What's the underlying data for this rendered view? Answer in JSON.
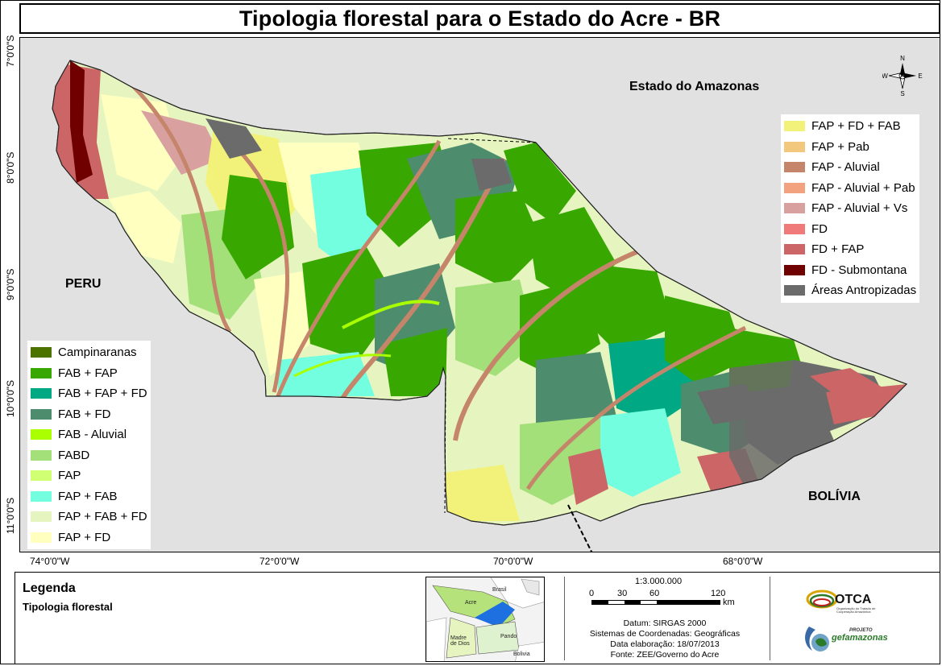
{
  "title": "Tipologia florestal para o Estado do Acre - BR",
  "map": {
    "latitude_labels": [
      "7°0'0\"S",
      "8°0'0\"S",
      "9°0'0\"S",
      "10°0'0\"S",
      "11°0'0\"S"
    ],
    "longitude_labels": [
      "74°0'0\"W",
      "72°0'0\"W",
      "70°0'0\"W",
      "68°0'0\"W"
    ],
    "places": {
      "amazonas": "Estado do Amazonas",
      "peru": "PERU",
      "bolivia": "BOLÍVIA"
    },
    "compass": {
      "n": "N",
      "s": "S",
      "e": "E",
      "w": "W"
    }
  },
  "legend_right": [
    {
      "label": "FAP + FD + FAB",
      "color": "#f2f27a"
    },
    {
      "label": "FAP + Pab",
      "color": "#f2c77e"
    },
    {
      "label": "FAP - Aluvial",
      "color": "#c4856a"
    },
    {
      "label": "FAP - Aluvial + Pab",
      "color": "#f2a27e"
    },
    {
      "label": "FAP - Aluvial + Vs",
      "color": "#d9a0a0"
    },
    {
      "label": "FD",
      "color": "#f07a7a"
    },
    {
      "label": "FD + FAP",
      "color": "#cc6666"
    },
    {
      "label": "FD - Submontana",
      "color": "#700000"
    },
    {
      "label": "Áreas Antropizadas",
      "color": "#6b6b6b"
    }
  ],
  "legend_left": [
    {
      "label": "Campinaranas",
      "color": "#4c7300"
    },
    {
      "label": "FAB + FAP",
      "color": "#38a800"
    },
    {
      "label": "FAB + FAP + FD",
      "color": "#00a884"
    },
    {
      "label": "FAB + FD",
      "color": "#4e8c6e"
    },
    {
      "label": "FAB - Aluvial",
      "color": "#aaff00"
    },
    {
      "label": "FABD",
      "color": "#a3e07a"
    },
    {
      "label": "FAP",
      "color": "#d1ff73"
    },
    {
      "label": "FAP + FAB",
      "color": "#73ffdf"
    },
    {
      "label": "FAP + FAB + FD",
      "color": "#e6f5c0"
    },
    {
      "label": "FAP + FD",
      "color": "#ffffc0"
    }
  ],
  "bottom": {
    "legend_title": "Legenda",
    "legend_subtitle": "Tipologia florestal",
    "inset": {
      "brasil": "Brasil",
      "acre": "Acre",
      "pando": "Pando",
      "madre_de_dios": "Madre\nde Dios",
      "bolivia": "Bolivia"
    },
    "scale": {
      "ratio": "1:3.000.000",
      "ticks": [
        "0",
        "30",
        "60",
        "120"
      ],
      "unit": "km"
    },
    "info": [
      "Datum: SIRGAS 2000",
      "Sistemas de Coordenadas: Geográficas",
      "Data elaboração: 18/07/2013",
      "Fonte: ZEE/Governo do Acre"
    ],
    "logos": {
      "otca": "OTCA",
      "otca_sub": "Organização do Tratado de Cooperação Amazônica",
      "projeto": "PROJETO",
      "gef": "gefamazonas"
    }
  }
}
